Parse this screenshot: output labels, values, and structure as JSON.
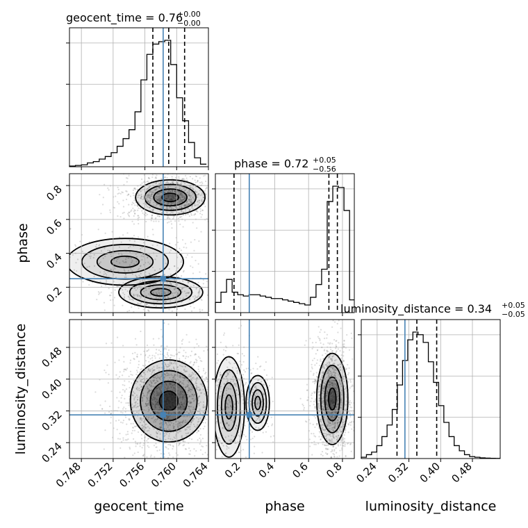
{
  "chart_data": {
    "type": "corner",
    "parameters": [
      "geocent_time",
      "phase",
      "luminosity_distance"
    ],
    "truth": {
      "geocent_time": 0.7583,
      "phase": 0.25,
      "luminosity_distance": 0.31
    },
    "titles": [
      {
        "param": "geocent_time",
        "text": "geocent_time = 0.76",
        "plus": "+0.00",
        "minus": "−0.00"
      },
      {
        "param": "phase",
        "text": "phase = 0.72",
        "plus": "+0.05",
        "minus": "−0.56"
      },
      {
        "param": "luminosity_distance",
        "text": "luminosity_distance = 0.34",
        "plus": "+0.05",
        "minus": "−0.05"
      }
    ],
    "axes": {
      "geocent_time": {
        "range": [
          0.7465,
          0.764
        ],
        "ticks": [
          0.748,
          0.752,
          0.756,
          0.76,
          0.764
        ],
        "tick_labels": [
          "0.748",
          "0.752",
          "0.756",
          "0.760",
          "0.764"
        ],
        "label": "geocent_time"
      },
      "phase": {
        "range": [
          0.05,
          0.87
        ],
        "ticks": [
          0.2,
          0.4,
          0.6,
          0.8
        ],
        "tick_labels": [
          "0.2",
          "0.4",
          "0.6",
          "0.8"
        ],
        "label": "phase"
      },
      "luminosity_distance": {
        "range": [
          0.2,
          0.55
        ],
        "ticks": [
          0.24,
          0.32,
          0.4,
          0.48
        ],
        "tick_labels": [
          "0.24",
          "0.32",
          "0.40",
          "0.48"
        ],
        "label": "luminosity_distance"
      }
    },
    "histograms": {
      "geocent_time": {
        "edges": [
          0.7465,
          0.74725,
          0.748,
          0.74875,
          0.7495,
          0.75025,
          0.751,
          0.75175,
          0.7525,
          0.75325,
          0.754,
          0.75475,
          0.7555,
          0.75625,
          0.757,
          0.75775,
          0.7585,
          0.75925,
          0.76,
          0.76075,
          0.7615,
          0.76225,
          0.763,
          0.76375
        ],
        "counts": [
          0.5,
          1,
          1.5,
          3,
          4,
          6,
          8,
          11,
          16,
          22,
          29,
          43,
          68,
          88,
          96,
          98,
          99,
          80,
          54,
          36,
          19,
          7,
          2
        ]
      },
      "phase": {
        "edges": [
          0.05,
          0.083,
          0.116,
          0.149,
          0.182,
          0.215,
          0.248,
          0.281,
          0.314,
          0.347,
          0.38,
          0.413,
          0.446,
          0.479,
          0.512,
          0.545,
          0.578,
          0.611,
          0.644,
          0.677,
          0.71,
          0.743,
          0.776,
          0.809,
          0.842,
          0.87
        ],
        "counts": [
          8,
          16,
          26,
          16,
          14,
          13,
          14,
          14,
          13,
          12,
          11,
          11,
          10,
          9,
          8,
          7,
          6,
          12,
          22,
          34,
          87,
          99,
          98,
          80,
          10
        ]
      },
      "luminosity_distance": {
        "edges": [
          0.2,
          0.213,
          0.226,
          0.239,
          0.252,
          0.265,
          0.278,
          0.291,
          0.304,
          0.317,
          0.33,
          0.343,
          0.356,
          0.369,
          0.382,
          0.395,
          0.408,
          0.421,
          0.434,
          0.447,
          0.46,
          0.473,
          0.486,
          0.499,
          0.512,
          0.525,
          0.538,
          0.55
        ],
        "counts": [
          1,
          3,
          5,
          10,
          17,
          26,
          38,
          57,
          76,
          92,
          98,
          96,
          90,
          75,
          59,
          41,
          28,
          17,
          10,
          6,
          3,
          1.5,
          1,
          0.5,
          0.3,
          0.2,
          0.1
        ]
      }
    },
    "quantiles": {
      "geocent_time": [
        0.757,
        0.759,
        0.761
      ],
      "phase": [
        0.16,
        0.72,
        0.77
      ],
      "luminosity_distance": [
        0.29,
        0.34,
        0.39
      ]
    },
    "modes_2d": {
      "phase_vs_geocent_time": [
        {
          "x": 0.7592,
          "y": 0.73,
          "sx": 0.0019,
          "sy": 0.045,
          "weight": 0.62
        },
        {
          "x": 0.758,
          "y": 0.17,
          "sx": 0.0023,
          "sy": 0.04,
          "weight": 0.22
        },
        {
          "x": 0.7535,
          "y": 0.35,
          "sx": 0.0032,
          "sy": 0.06,
          "weight": 0.16
        }
      ],
      "luminosity_distance_vs_geocent_time": [
        {
          "x": 0.759,
          "y": 0.345,
          "sx": 0.0021,
          "sy": 0.045,
          "weight": 1.0
        }
      ],
      "luminosity_distance_vs_phase": [
        {
          "x": 0.74,
          "y": 0.35,
          "sx": 0.04,
          "sy": 0.05,
          "weight": 0.7
        },
        {
          "x": 0.13,
          "y": 0.33,
          "sx": 0.04,
          "sy": 0.055,
          "weight": 0.2
        },
        {
          "x": 0.3,
          "y": 0.34,
          "sx": 0.03,
          "sy": 0.03,
          "weight": 0.1
        }
      ]
    },
    "grid": true,
    "colors": {
      "truth": "#4682b4",
      "contour": "#000000",
      "samples": "#7f7f7f"
    }
  }
}
